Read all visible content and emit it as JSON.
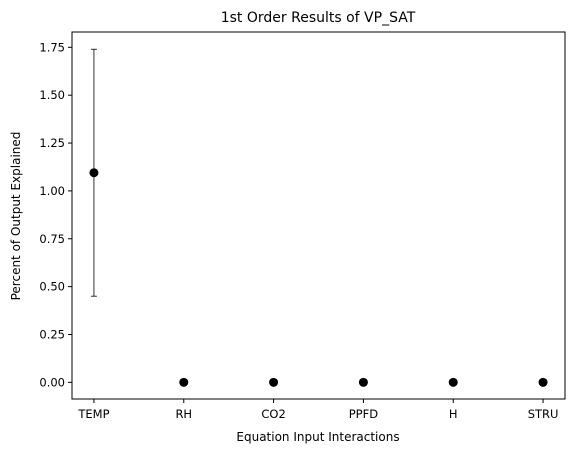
{
  "chart_data": {
    "type": "scatter",
    "title": "1st Order Results of VP_SAT",
    "xlabel": "Equation Input Interactions",
    "ylabel": "Percent of Output Explained",
    "categories": [
      "TEMP",
      "RH",
      "CO2",
      "PPFD",
      "H",
      "STRU"
    ],
    "series": [
      {
        "values": [
          1.095,
          0.0,
          0.0,
          0.0,
          0.0,
          0.0
        ],
        "error_lower": [
          0.645,
          0.0,
          0.0,
          0.0,
          0.0,
          0.0
        ],
        "error_upper": [
          0.645,
          0.0,
          0.0,
          0.0,
          0.0,
          0.0
        ],
        "color": "#000000"
      }
    ],
    "ylim": [
      -0.087,
      1.83
    ],
    "yticks": [
      0.0,
      0.25,
      0.5,
      0.75,
      1.0,
      1.25,
      1.5,
      1.75
    ],
    "ytick_labels": [
      "0.00",
      "0.25",
      "0.50",
      "0.75",
      "1.00",
      "1.25",
      "1.50",
      "1.75"
    ],
    "grid": false,
    "legend": "none"
  }
}
